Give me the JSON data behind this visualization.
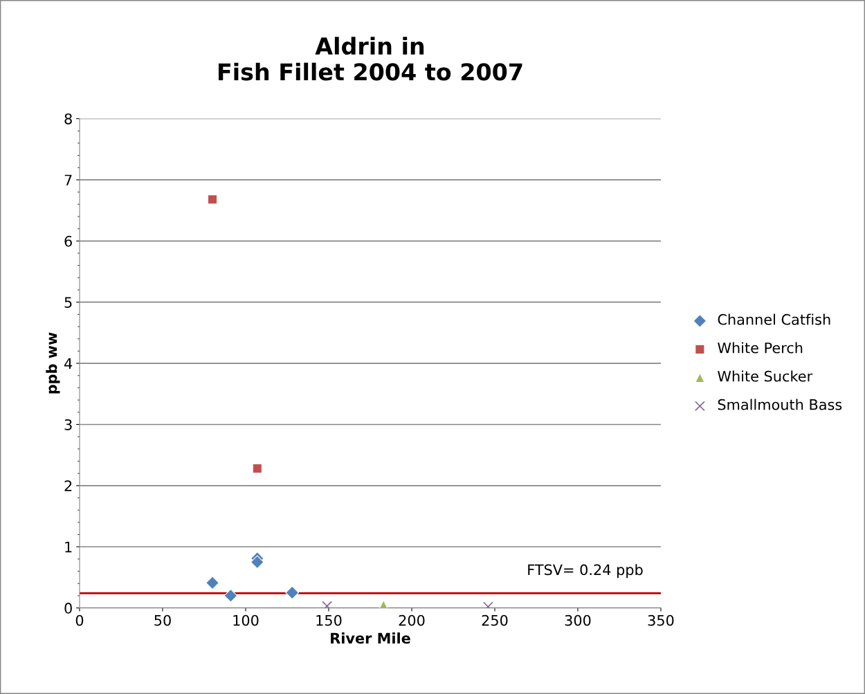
{
  "chart_data": {
    "type": "scatter",
    "title": "Aldrin in\nFish Fillet 2004 to 2007",
    "xlabel": "River Mile",
    "ylabel": "ppb ww",
    "series": [
      {
        "name": "Channel Catfish",
        "color": "#4f81bd",
        "marker": "diamond",
        "x": [
          80,
          91,
          107,
          107,
          128
        ],
        "values": [
          0.41,
          0.2,
          0.81,
          0.75,
          0.25
        ]
      },
      {
        "name": "White Perch",
        "color": "#c0504d",
        "marker": "square",
        "x": [
          80,
          107
        ],
        "values": [
          6.68,
          2.28
        ]
      },
      {
        "name": "White Sucker",
        "color": "#9bbb59",
        "marker": "triangle",
        "x": [
          183
        ],
        "values": [
          0.05
        ]
      },
      {
        "name": "Smallmouth Bass",
        "color": "#8064a2",
        "marker": "cross",
        "x": [
          149,
          246
        ],
        "values": [
          0.03,
          0.02
        ]
      }
    ],
    "xlim": [
      0,
      350
    ],
    "xticks": [
      0,
      50,
      100,
      150,
      200,
      250,
      300,
      350
    ],
    "ylim": [
      0,
      8
    ],
    "yticks": [
      0,
      1,
      2,
      3,
      4,
      5,
      6,
      7,
      8
    ],
    "grid": "y",
    "legend": "right",
    "ref_lines": [
      {
        "axis": "y",
        "value": 0.24,
        "label": "FTSV= 0.24 ppb",
        "color": "#c00000",
        "line_style": "solid"
      }
    ]
  }
}
